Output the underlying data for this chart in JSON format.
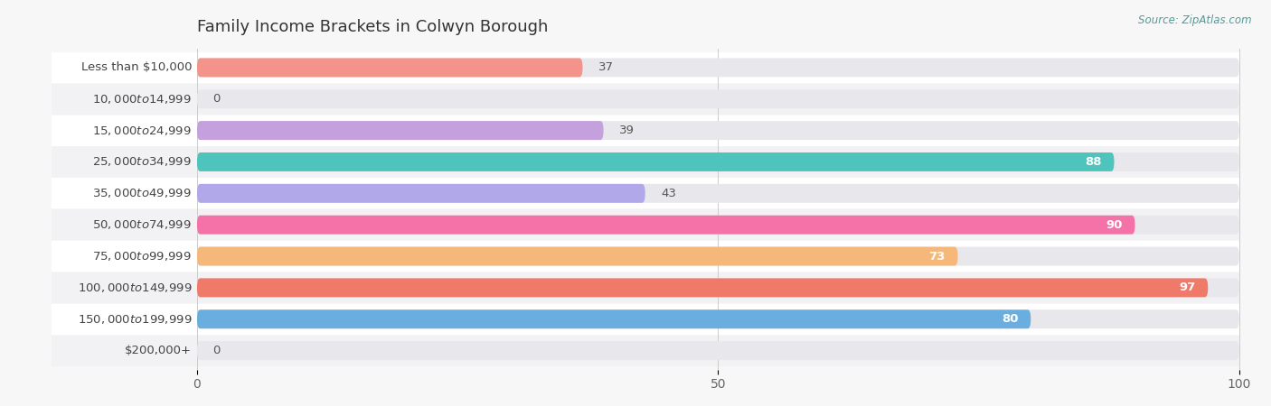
{
  "title": "Family Income Brackets in Colwyn Borough",
  "source": "Source: ZipAtlas.com",
  "categories": [
    "Less than $10,000",
    "$10,000 to $14,999",
    "$15,000 to $24,999",
    "$25,000 to $34,999",
    "$35,000 to $49,999",
    "$50,000 to $74,999",
    "$75,000 to $99,999",
    "$100,000 to $149,999",
    "$150,000 to $199,999",
    "$200,000+"
  ],
  "values": [
    37,
    0,
    39,
    88,
    43,
    90,
    73,
    97,
    80,
    0
  ],
  "bar_colors": [
    "#F4938A",
    "#A8C8F0",
    "#C4A0DC",
    "#4EC4BC",
    "#B0A8E8",
    "#F472A8",
    "#F5B87A",
    "#F07A6A",
    "#6AAEE0",
    "#D4A8D8"
  ],
  "xlim": [
    0,
    100
  ],
  "xticks": [
    0,
    50,
    100
  ],
  "background_color": "#f7f7f7",
  "bar_bg_color": "#e8e8ec",
  "row_bg_even": "#ffffff",
  "row_bg_odd": "#f0f0f0",
  "title_fontsize": 13,
  "label_fontsize": 9.5,
  "value_fontsize": 9.5,
  "value_inside_threshold": 50
}
